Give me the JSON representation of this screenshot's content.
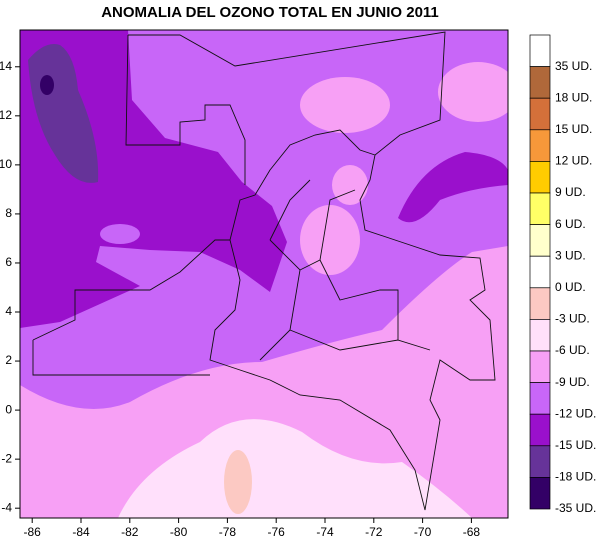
{
  "title": "ANOMALIA DEL OZONO TOTAL EN JUNIO 2011",
  "map": {
    "xlim": [
      -86.5,
      -66.5
    ],
    "ylim": [
      -4.4,
      15.5
    ],
    "xticks": [
      -86,
      -84,
      -82,
      -80,
      -78,
      -76,
      -74,
      -72,
      -70,
      -68
    ],
    "yticks": [
      14,
      12,
      10,
      8,
      6,
      4,
      2,
      0,
      -2,
      -4
    ]
  },
  "legend": {
    "colors": [
      "#ffffff",
      "#b0683a",
      "#d4703a",
      "#f7983a",
      "#ffcc00",
      "#ffff66",
      "#ffffcc",
      "#ffffff",
      "#fcc9c3",
      "#ffe0fb",
      "#f7a0f5",
      "#c866f8",
      "#9a10cc",
      "#663399",
      "#330066"
    ],
    "labels": [
      "35 UD.",
      "18 UD.",
      "15 UD.",
      "12 UD.",
      "9 UD.",
      "6 UD.",
      "3 UD.",
      "0 UD.",
      "-3 UD.",
      "-6 UD.",
      "-9 UD.",
      "-12 UD.",
      "-15 UD.",
      "-18 UD.",
      "-35 UD."
    ]
  }
}
